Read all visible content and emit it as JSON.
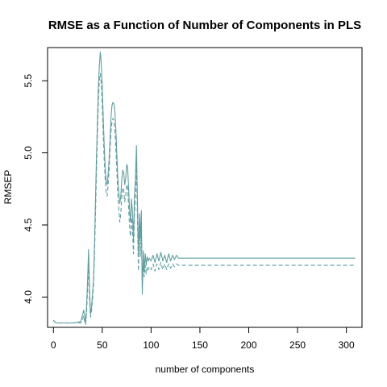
{
  "chart_data": {
    "type": "line",
    "title": "RMSE as a Function of Number of Components in PLS",
    "xlabel": "number of components",
    "ylabel": "RMSEP",
    "xlim": [
      -6,
      316
    ],
    "ylim": [
      3.79,
      5.73
    ],
    "x_ticks": [
      0,
      50,
      100,
      150,
      200,
      250,
      300
    ],
    "y_ticks": [
      4.0,
      4.5,
      5.0,
      5.5
    ],
    "x_tick_labels": [
      "0",
      "50",
      "100",
      "150",
      "200",
      "250",
      "300"
    ],
    "y_tick_labels": [
      "4.0",
      "4.5",
      "5.0",
      "5.5"
    ],
    "grid": false,
    "line_color": "#5f9ea0",
    "series": [
      {
        "style": "solid",
        "points": [
          [
            0,
            3.84
          ],
          [
            1,
            3.83
          ],
          [
            3,
            3.82
          ],
          [
            10,
            3.82
          ],
          [
            20,
            3.82
          ],
          [
            28,
            3.83
          ],
          [
            30,
            3.88
          ],
          [
            31,
            3.91
          ],
          [
            32,
            3.87
          ],
          [
            33,
            3.82
          ],
          [
            34,
            3.95
          ],
          [
            35,
            4.12
          ],
          [
            36,
            4.33
          ],
          [
            37,
            4.05
          ],
          [
            38,
            3.88
          ],
          [
            39,
            3.93
          ],
          [
            40,
            4.02
          ],
          [
            41,
            4.12
          ],
          [
            42,
            4.35
          ],
          [
            43,
            4.65
          ],
          [
            44,
            4.95
          ],
          [
            45,
            5.2
          ],
          [
            46,
            5.45
          ],
          [
            47,
            5.6
          ],
          [
            48,
            5.7
          ],
          [
            49,
            5.62
          ],
          [
            50,
            5.45
          ],
          [
            51,
            5.25
          ],
          [
            52,
            5.05
          ],
          [
            53,
            4.9
          ],
          [
            54,
            4.8
          ],
          [
            55,
            4.78
          ],
          [
            56,
            4.85
          ],
          [
            57,
            4.95
          ],
          [
            58,
            5.1
          ],
          [
            59,
            5.25
          ],
          [
            60,
            5.33
          ],
          [
            61,
            5.35
          ],
          [
            62,
            5.34
          ],
          [
            63,
            5.28
          ],
          [
            64,
            5.15
          ],
          [
            65,
            4.98
          ],
          [
            66,
            4.82
          ],
          [
            67,
            4.72
          ],
          [
            68,
            4.65
          ],
          [
            69,
            4.7
          ],
          [
            70,
            4.82
          ],
          [
            71,
            4.88
          ],
          [
            72,
            4.86
          ],
          [
            73,
            4.78
          ],
          [
            74,
            4.82
          ],
          [
            75,
            4.92
          ],
          [
            76,
            4.9
          ],
          [
            77,
            4.75
          ],
          [
            78,
            4.6
          ],
          [
            79,
            4.52
          ],
          [
            80,
            4.68
          ],
          [
            81,
            4.58
          ],
          [
            82,
            4.4
          ],
          [
            83,
            4.7
          ],
          [
            84,
            4.82
          ],
          [
            85,
            5.05
          ],
          [
            86,
            4.68
          ],
          [
            87,
            4.28
          ],
          [
            88,
            4.58
          ],
          [
            89,
            4.4
          ],
          [
            90,
            4.6
          ],
          [
            91,
            4.02
          ],
          [
            92,
            4.32
          ],
          [
            93,
            4.18
          ],
          [
            94,
            4.3
          ],
          [
            95,
            4.22
          ],
          [
            96,
            4.28
          ],
          [
            97,
            4.25
          ],
          [
            98,
            4.27
          ],
          [
            100,
            4.25
          ],
          [
            102,
            4.29
          ],
          [
            104,
            4.24
          ],
          [
            106,
            4.3
          ],
          [
            108,
            4.25
          ],
          [
            110,
            4.31
          ],
          [
            112,
            4.25
          ],
          [
            114,
            4.29
          ],
          [
            116,
            4.24
          ],
          [
            118,
            4.3
          ],
          [
            120,
            4.25
          ],
          [
            122,
            4.29
          ],
          [
            124,
            4.26
          ],
          [
            126,
            4.29
          ],
          [
            128,
            4.27
          ],
          [
            130,
            4.27
          ],
          [
            200,
            4.27
          ],
          [
            309,
            4.27
          ]
        ]
      },
      {
        "style": "dashed",
        "points": [
          [
            0,
            3.84
          ],
          [
            1,
            3.83
          ],
          [
            3,
            3.82
          ],
          [
            10,
            3.82
          ],
          [
            20,
            3.82
          ],
          [
            28,
            3.82
          ],
          [
            30,
            3.85
          ],
          [
            31,
            3.87
          ],
          [
            32,
            3.83
          ],
          [
            33,
            3.81
          ],
          [
            34,
            3.9
          ],
          [
            35,
            4.05
          ],
          [
            36,
            4.22
          ],
          [
            37,
            3.98
          ],
          [
            38,
            3.86
          ],
          [
            39,
            3.9
          ],
          [
            40,
            3.98
          ],
          [
            41,
            4.08
          ],
          [
            42,
            4.28
          ],
          [
            43,
            4.55
          ],
          [
            44,
            4.85
          ],
          [
            45,
            5.1
          ],
          [
            46,
            5.35
          ],
          [
            47,
            5.5
          ],
          [
            48,
            5.55
          ],
          [
            49,
            5.48
          ],
          [
            50,
            5.32
          ],
          [
            51,
            5.12
          ],
          [
            52,
            4.95
          ],
          [
            53,
            4.82
          ],
          [
            54,
            4.72
          ],
          [
            55,
            4.7
          ],
          [
            56,
            4.78
          ],
          [
            57,
            4.88
          ],
          [
            58,
            5.02
          ],
          [
            59,
            5.15
          ],
          [
            60,
            5.22
          ],
          [
            61,
            5.24
          ],
          [
            62,
            5.22
          ],
          [
            63,
            5.15
          ],
          [
            64,
            5.02
          ],
          [
            65,
            4.86
          ],
          [
            66,
            4.7
          ],
          [
            67,
            4.6
          ],
          [
            68,
            4.52
          ],
          [
            69,
            4.58
          ],
          [
            70,
            4.7
          ],
          [
            71,
            4.76
          ],
          [
            72,
            4.74
          ],
          [
            73,
            4.66
          ],
          [
            74,
            4.7
          ],
          [
            75,
            4.78
          ],
          [
            76,
            4.76
          ],
          [
            77,
            4.62
          ],
          [
            78,
            4.48
          ],
          [
            79,
            4.42
          ],
          [
            80,
            4.55
          ],
          [
            81,
            4.46
          ],
          [
            82,
            4.3
          ],
          [
            83,
            4.58
          ],
          [
            84,
            4.7
          ],
          [
            85,
            4.92
          ],
          [
            86,
            4.56
          ],
          [
            87,
            4.18
          ],
          [
            88,
            4.46
          ],
          [
            89,
            4.28
          ],
          [
            90,
            4.48
          ],
          [
            91,
            4.08
          ],
          [
            92,
            4.22
          ],
          [
            93,
            4.14
          ],
          [
            94,
            4.22
          ],
          [
            95,
            4.16
          ],
          [
            96,
            4.21
          ],
          [
            97,
            4.19
          ],
          [
            98,
            4.21
          ],
          [
            100,
            4.19
          ],
          [
            102,
            4.23
          ],
          [
            104,
            4.18
          ],
          [
            106,
            4.23
          ],
          [
            108,
            4.19
          ],
          [
            110,
            4.24
          ],
          [
            112,
            4.19
          ],
          [
            114,
            4.23
          ],
          [
            116,
            4.19
          ],
          [
            118,
            4.23
          ],
          [
            120,
            4.2
          ],
          [
            122,
            4.23
          ],
          [
            124,
            4.21
          ],
          [
            126,
            4.23
          ],
          [
            128,
            4.22
          ],
          [
            130,
            4.22
          ],
          [
            200,
            4.22
          ],
          [
            309,
            4.22
          ]
        ]
      }
    ]
  }
}
